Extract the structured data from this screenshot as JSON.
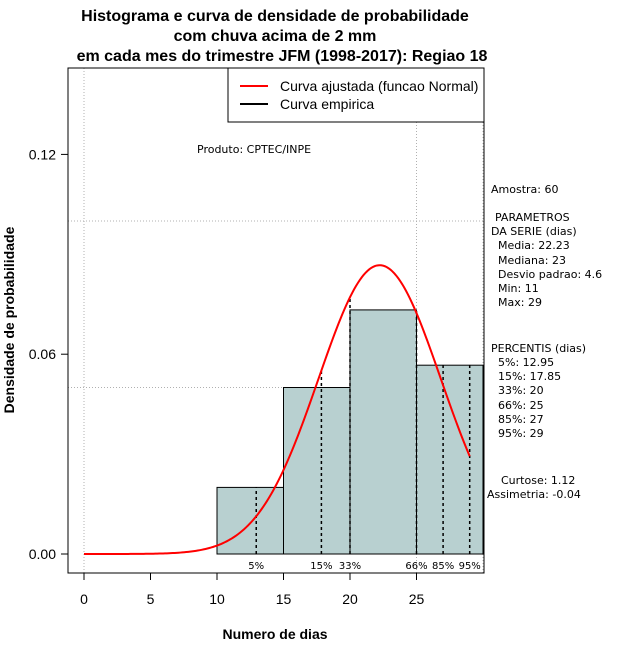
{
  "chart_data": {
    "type": "bar",
    "title_lines": [
      "Histograma e curva de densidade de probabilidade",
      "com chuva acima de 2 mm",
      "em cada mes do trimestre JFM (1998-2017): Regiao 18"
    ],
    "xlabel": "Numero de dias",
    "ylabel": "Densidade de probabilidade",
    "xlim": [
      -2,
      30
    ],
    "ylim": [
      0,
      0.15
    ],
    "xticks": [
      0,
      5,
      10,
      15,
      20,
      25
    ],
    "yticks": [
      0.0,
      0.06,
      0.12
    ],
    "ytick_labels": [
      "0.00",
      "0.06",
      "0.12"
    ],
    "bins": [
      {
        "from": 10,
        "to": 15,
        "density": 0.02
      },
      {
        "from": 15,
        "to": 20,
        "density": 0.05
      },
      {
        "from": 20,
        "to": 25,
        "density": 0.0733
      },
      {
        "from": 25,
        "to": 30,
        "density": 0.0567
      }
    ],
    "normal_curve": {
      "mean": 22.23,
      "sd": 4.6,
      "x_from": 0,
      "x_to": 29
    },
    "grid_y": [
      0.05,
      0.1
    ],
    "grid_x": [
      0,
      25
    ],
    "percentile_lines": [
      {
        "label": "5%",
        "x": 12.95
      },
      {
        "label": "15%",
        "x": 17.85
      },
      {
        "label": "33%",
        "x": 20
      },
      {
        "label": "66%",
        "x": 25
      },
      {
        "label": "85%",
        "x": 27
      },
      {
        "label": "95%",
        "x": 29
      }
    ],
    "legend": {
      "placement": "top-right",
      "entries": [
        {
          "label": "Curva ajustada (funcao Normal)",
          "color": "#ff0000"
        },
        {
          "label": "Curva empirica",
          "color": "#000000"
        }
      ]
    },
    "colors": {
      "bar_fill": "#b8d0d0",
      "curve": "#ff0000",
      "grid": "#b0b0b0"
    }
  },
  "annotations": {
    "produto": "Produto: CPTEC/INPE",
    "amostra": "Amostra: 60",
    "params_title_1": "PARAMETROS",
    "params_title_2": "DA SERIE (dias)",
    "params": [
      "Media: 22.23",
      "Mediana: 23",
      "Desvio padrao: 4.6",
      "Min: 11",
      "Max: 29"
    ],
    "percentis_title": "PERCENTIS (dias)",
    "percentis": [
      "5%: 12.95",
      "15%: 17.85",
      "33%: 20",
      "66%: 25",
      "85%: 27",
      "95%: 29"
    ],
    "curtose": "Curtose: 1.12",
    "assimetria": "Assimetria: -0.04"
  }
}
